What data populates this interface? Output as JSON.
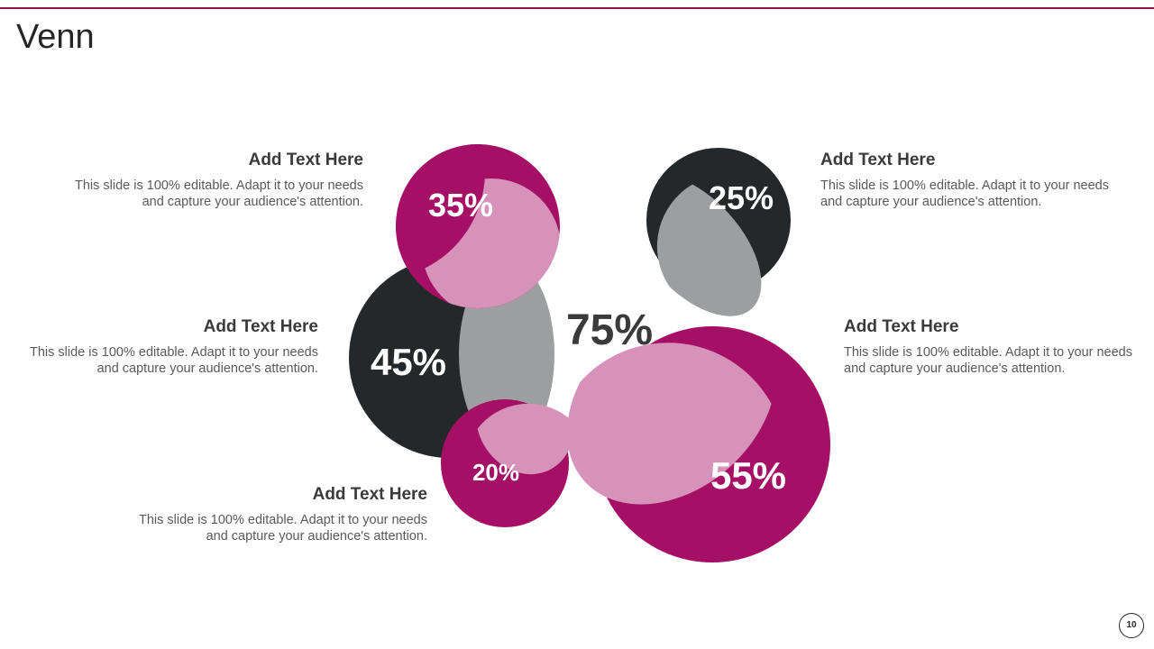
{
  "title": "Venn",
  "page_number": "10",
  "colors": {
    "magenta": "#a50f66",
    "light_pink": "#d692b8",
    "dark": "#25282a",
    "gray": "#9d9ea0",
    "text_dark": "#3a3a3a",
    "text_body": "#595959",
    "accent_rule": "#8b1a4a"
  },
  "circles": [
    {
      "id": "c35",
      "label": "35%",
      "color": "magenta"
    },
    {
      "id": "c45",
      "label": "45%",
      "color": "dark"
    },
    {
      "id": "c20",
      "label": "20%",
      "color": "magenta"
    },
    {
      "id": "c25",
      "label": "25%",
      "color": "dark"
    },
    {
      "id": "c55",
      "label": "55%",
      "color": "magenta"
    }
  ],
  "center_label": "75%",
  "text_blocks": [
    {
      "heading": "Add Text Here",
      "body": "This slide is 100% editable. Adapt it to your needs and capture your audience's attention."
    },
    {
      "heading": "Add Text Here",
      "body": "This slide is 100% editable. Adapt it to your needs and capture your audience's attention."
    },
    {
      "heading": "Add Text Here",
      "body": "This slide is 100% editable. Adapt it to your needs and capture your audience's attention."
    },
    {
      "heading": "Add Text Here",
      "body": "This slide is 100% editable. Adapt it to your needs and capture your audience's attention."
    },
    {
      "heading": "Add Text Here",
      "body": "This slide is 100% editable. Adapt it to your needs and capture your audience's attention."
    }
  ]
}
